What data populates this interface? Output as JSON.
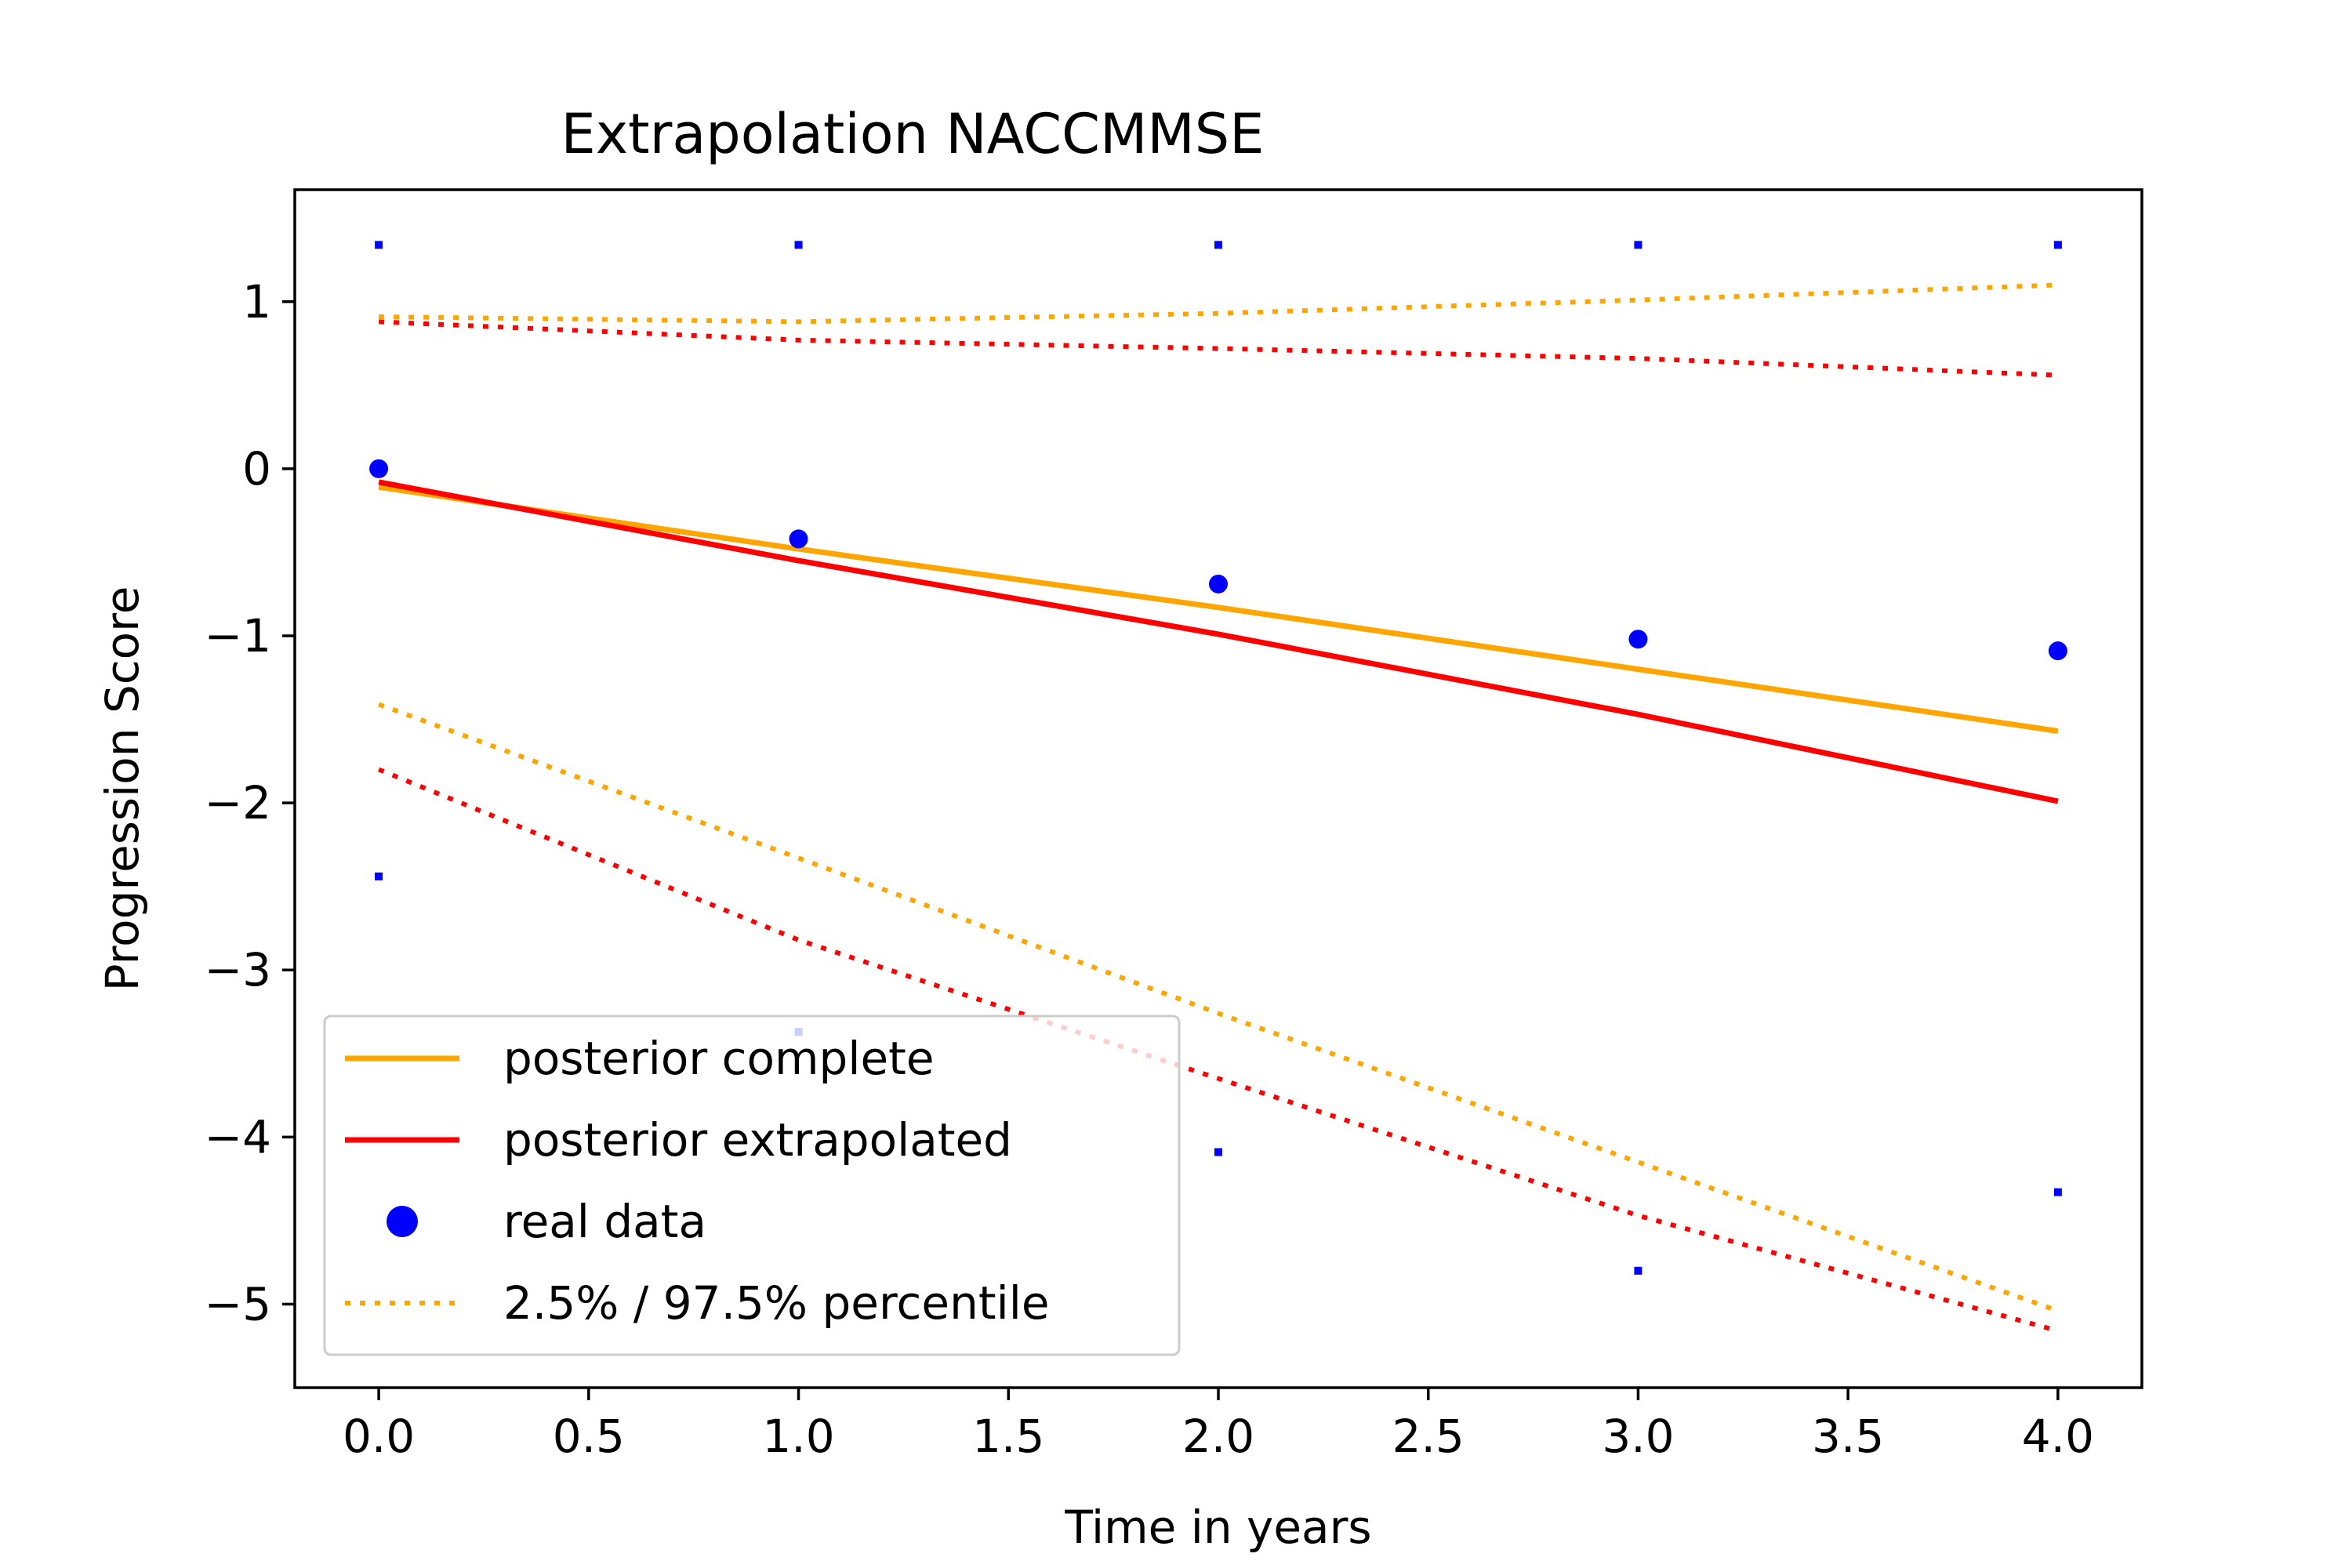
{
  "chart_data": {
    "type": "line",
    "title": "Extrapolation NACCMMSE",
    "xlabel": "Time in years",
    "ylabel": "Progression Score",
    "xlim": [
      -0.2,
      4.2
    ],
    "ylim": [
      -5.5,
      1.67
    ],
    "xticks": [
      0.0,
      0.5,
      1.0,
      1.5,
      2.0,
      2.5,
      3.0,
      3.5,
      4.0
    ],
    "xtick_labels": [
      "0.0",
      "0.5",
      "1.0",
      "1.5",
      "2.0",
      "2.5",
      "3.0",
      "3.5",
      "4.0"
    ],
    "yticks": [
      1,
      0,
      -1,
      -2,
      -3,
      -4,
      -5
    ],
    "ytick_labels": [
      "1",
      "0",
      "−1",
      "−2",
      "−3",
      "−4",
      "−5"
    ],
    "grid": false,
    "legend_position": "lower-left",
    "colors": {
      "complete": "#ffa500",
      "extrapolated": "#ff0000",
      "real_data": "#0000ff"
    },
    "x": [
      0,
      1,
      2,
      3,
      4
    ],
    "series": [
      {
        "name": "posterior complete",
        "style": "solid",
        "color": "#ffa500",
        "values": [
          -0.11,
          -0.48,
          -0.83,
          -1.2,
          -1.57
        ]
      },
      {
        "name": "posterior extrapolated",
        "style": "solid",
        "color": "#ff0000",
        "values": [
          -0.08,
          -0.55,
          -0.99,
          -1.47,
          -1.99
        ]
      },
      {
        "name": "real data",
        "style": "markers",
        "color": "#0000ff",
        "values": [
          0.0,
          -0.42,
          -0.69,
          -1.02,
          -1.09
        ]
      },
      {
        "name": "2.5% / 97.5% percentile",
        "style": "dotted",
        "color": "#ffa500",
        "values": [
          0.91,
          0.88,
          0.93,
          1.01,
          1.1
        ]
      },
      {
        "name": "",
        "style": "dotted",
        "color": "#ffa500",
        "values": [
          -1.41,
          -2.33,
          -3.26,
          -4.15,
          -5.04
        ]
      },
      {
        "name": "",
        "style": "dotted",
        "color": "#ff0000",
        "values": [
          0.88,
          0.77,
          0.72,
          0.66,
          0.56
        ]
      },
      {
        "name": "",
        "style": "dotted",
        "color": "#ff0000",
        "values": [
          -1.8,
          -2.82,
          -3.65,
          -4.47,
          -5.16
        ]
      },
      {
        "name": "",
        "style": "small-markers",
        "color": "#0000ff",
        "values": [
          1.34,
          1.34,
          1.34,
          1.34,
          1.34
        ]
      },
      {
        "name": "",
        "style": "small-markers",
        "color": "#0000ff",
        "values": [
          -2.44,
          -3.37,
          -4.09,
          -4.8,
          -4.33
        ]
      }
    ],
    "legend": [
      {
        "label": "posterior complete",
        "style": "solid",
        "color": "#ffa500"
      },
      {
        "label": "posterior extrapolated",
        "style": "solid",
        "color": "#ff0000"
      },
      {
        "label": "real data",
        "style": "markers",
        "color": "#0000ff"
      },
      {
        "label": "2.5% / 97.5% percentile",
        "style": "dotted",
        "color": "#ffa500"
      }
    ]
  }
}
